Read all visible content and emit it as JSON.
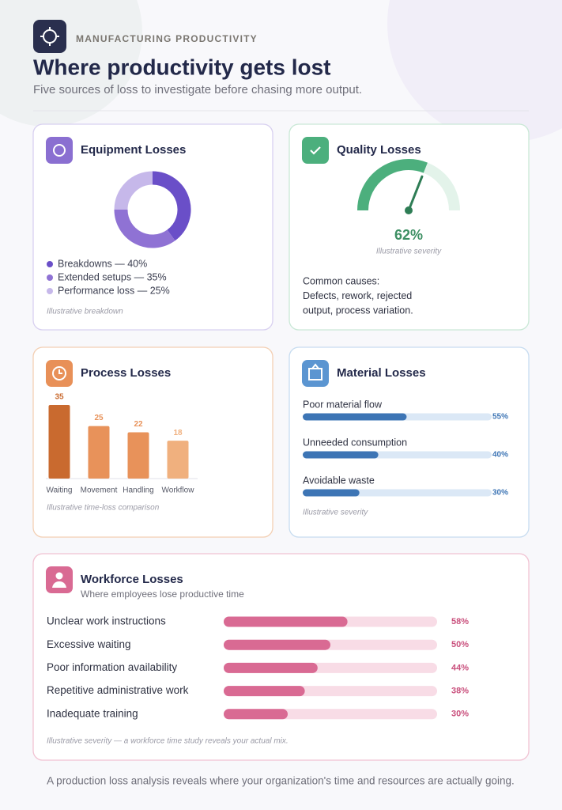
{
  "header": {
    "eyebrow": "MANUFACTURING PRODUCTIVITY",
    "title": "Where productivity gets lost",
    "subtitle": "Five sources of loss to investigate before chasing more output."
  },
  "equipment": {
    "title": "Equipment Losses",
    "type": "pie",
    "items": [
      {
        "label": "Breakdowns — 40%",
        "value": 40,
        "color": "#6a4fc8"
      },
      {
        "label": "Extended setups — 35%",
        "value": 35,
        "color": "#8f72d4"
      },
      {
        "label": "Performance loss — 25%",
        "value": 25,
        "color": "#c6b8ea"
      }
    ],
    "note": "Illustrative breakdown"
  },
  "quality": {
    "title": "Quality Losses",
    "type": "gauge",
    "value": 62,
    "value_label": "62%",
    "range": [
      0,
      100
    ],
    "color": "#4caf7d",
    "track_color": "#e3f3ea",
    "caption": "Illustrative severity",
    "causes": [
      "Common causes:",
      "Defects, rework, rejected",
      "output, process variation."
    ]
  },
  "process": {
    "title": "Process Losses",
    "type": "bar",
    "categories": [
      "Waiting",
      "Movement",
      "Handling",
      "Workflow"
    ],
    "values": [
      35,
      25,
      22,
      18
    ],
    "colors": [
      "#c96a2f",
      "#e8925a",
      "#e8925a",
      "#f0b07e"
    ],
    "ylim": [
      0,
      35
    ],
    "note": "Illustrative time-loss comparison"
  },
  "material": {
    "title": "Material Losses",
    "type": "hbar",
    "xlim": [
      0,
      100
    ],
    "color": "#3d75b5",
    "track_color": "#dbe8f6",
    "items": [
      {
        "label": "Poor material flow",
        "value": 55,
        "value_label": "55%"
      },
      {
        "label": "Unneeded consumption",
        "value": 40,
        "value_label": "40%"
      },
      {
        "label": "Avoidable waste",
        "value": 30,
        "value_label": "30%"
      }
    ],
    "note": "Illustrative severity"
  },
  "workforce": {
    "title": "Workforce Losses",
    "subtitle": "Where employees lose productive time",
    "type": "hbar",
    "xlim": [
      0,
      100
    ],
    "color": "#d96a93",
    "track_color": "#f8dce6",
    "items": [
      {
        "label": "Unclear work instructions",
        "value": 58,
        "value_label": "58%"
      },
      {
        "label": "Excessive waiting",
        "value": 50,
        "value_label": "50%"
      },
      {
        "label": "Poor information availability",
        "value": 44,
        "value_label": "44%"
      },
      {
        "label": "Repetitive administrative work",
        "value": 38,
        "value_label": "38%"
      },
      {
        "label": "Inadequate training",
        "value": 30,
        "value_label": "30%"
      }
    ],
    "note": "Illustrative severity — a workforce time study reveals your actual mix."
  },
  "footer": "A production loss analysis reveals where your organization's time and resources are actually going."
}
